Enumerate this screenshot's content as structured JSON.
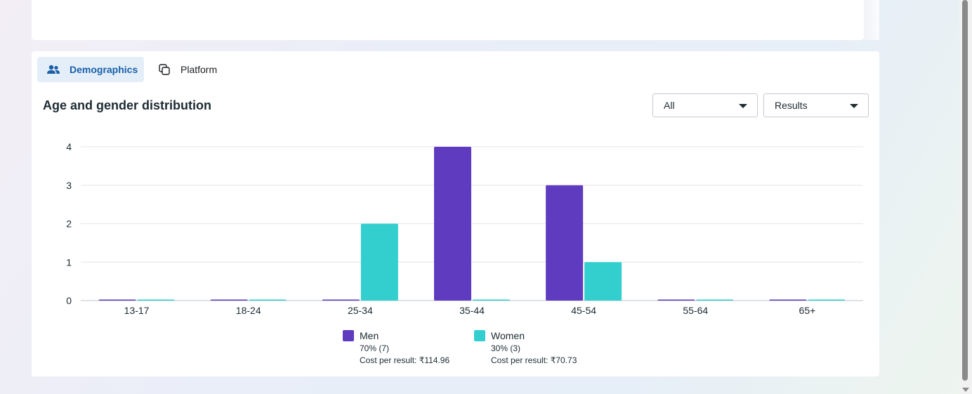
{
  "tabs": [
    {
      "label": "Demographics",
      "icon": "people-icon",
      "active": true
    },
    {
      "label": "Platform",
      "icon": "copy-icon",
      "active": false
    }
  ],
  "section_title": "Age and gender distribution",
  "filters": {
    "audience": "All",
    "metric": "Results"
  },
  "colors": {
    "men": "#5e3bbf",
    "women": "#33cfcf",
    "active_tab_bg": "#e3eef9",
    "active_tab_text": "#1a5fa8"
  },
  "chart_data": {
    "type": "bar",
    "categories": [
      "13-17",
      "18-24",
      "25-34",
      "35-44",
      "45-54",
      "55-64",
      "65+"
    ],
    "series": [
      {
        "name": "Men",
        "values": [
          0,
          0,
          0,
          4,
          3,
          0,
          0
        ]
      },
      {
        "name": "Women",
        "values": [
          0,
          0,
          2,
          0,
          1,
          0,
          0
        ]
      }
    ],
    "yticks": [
      0,
      1,
      2,
      3,
      4
    ],
    "ylim": [
      0,
      4
    ],
    "grid": true,
    "legend_position": "bottom"
  },
  "legend": [
    {
      "name": "Men",
      "share": "70% (7)",
      "cost": "Cost per result: ₹114.96"
    },
    {
      "name": "Women",
      "share": "30% (3)",
      "cost": "Cost per result: ₹70.73"
    }
  ]
}
